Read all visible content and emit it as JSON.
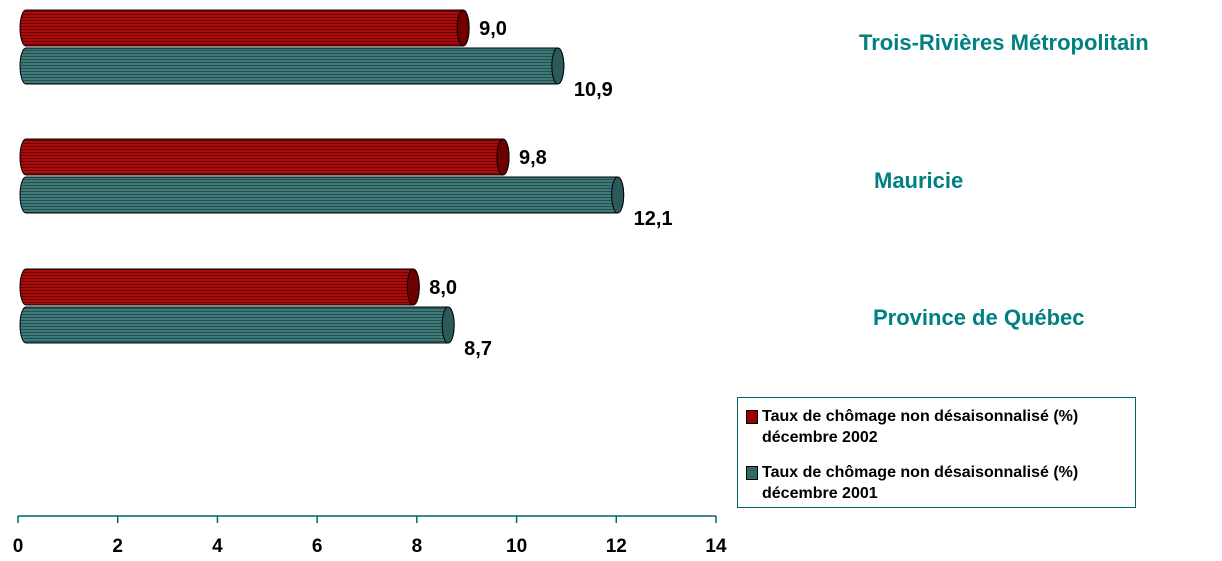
{
  "chart_data": {
    "type": "bar",
    "orientation": "horizontal",
    "style": "3d-cylinder",
    "categories": [
      "Trois-Rivières Métropolitain",
      "Mauricie",
      "Province de Québec"
    ],
    "series": [
      {
        "name": "Taux de chômage non désaisonnalisé (%) décembre 2002",
        "color": "#990000",
        "values": [
          9.0,
          9.8,
          8.0
        ],
        "labels": [
          "9,0",
          "9,8",
          "8,0"
        ]
      },
      {
        "name": "Taux de chômage non désaisonnalisé (%) décembre 2001",
        "color": "#336666",
        "values": [
          10.9,
          12.1,
          8.7
        ],
        "labels": [
          "10,9",
          "12,1",
          "8,7"
        ]
      }
    ],
    "x_ticks": [
      "0",
      "2",
      "4",
      "6",
      "8",
      "10",
      "12",
      "14"
    ],
    "xlim": [
      0,
      14
    ],
    "grid": false,
    "legend_position": "bottom-right",
    "axis_color": "#006666",
    "category_label_color": "#008080"
  }
}
